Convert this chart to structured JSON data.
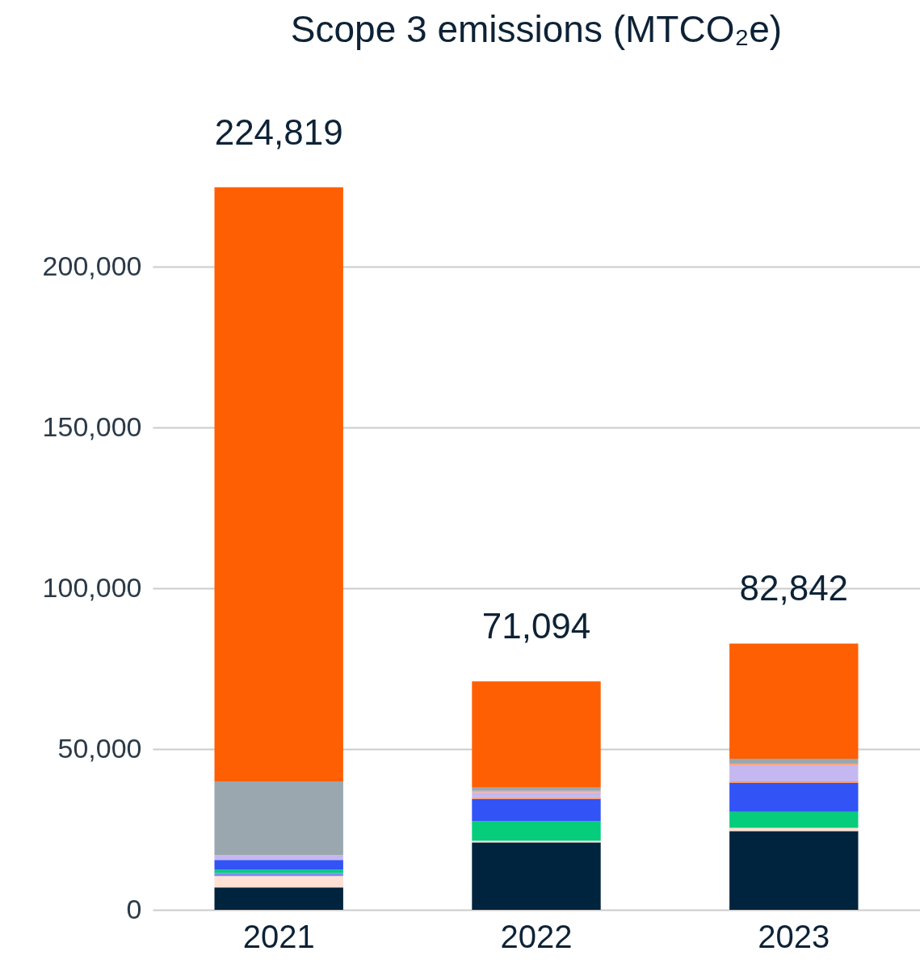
{
  "chart_data": {
    "type": "bar",
    "title": "Scope 3 emissions (MTCO₂e)",
    "stacked": true,
    "categories": [
      "2021",
      "2022",
      "2023"
    ],
    "series": [
      {
        "color": "#00243d",
        "values": [
          7000,
          21000,
          24500
        ]
      },
      {
        "color": "#ffe0d3",
        "values": [
          3500,
          500,
          1000
        ]
      },
      {
        "color": "#7b8ff0",
        "values": [
          1000,
          null,
          null
        ]
      },
      {
        "color": "#05cd7b",
        "values": [
          1000,
          6000,
          5000
        ]
      },
      {
        "color": "#3253f5",
        "values": [
          3000,
          7000,
          9000
        ]
      },
      {
        "color": "#ff9a6a",
        "values": [
          null,
          500,
          500
        ]
      },
      {
        "color": "#c5b8f0",
        "values": [
          1500,
          1500,
          5000
        ]
      },
      {
        "color": "#ffa585",
        "values": [
          null,
          500,
          500
        ]
      },
      {
        "color": "#9aa7ae",
        "values": [
          23000,
          1000,
          1500
        ]
      },
      {
        "color": "#ff5f03",
        "values": [
          184819,
          33094,
          35842
        ]
      }
    ],
    "totals": [
      "224,819",
      "71,094",
      "82,842"
    ],
    "ylim": [
      0,
      225000
    ],
    "yticks": [
      0,
      {
        "value": 50000,
        "label": "50,000"
      },
      {
        "value": 100000,
        "label": "100,000"
      },
      {
        "value": 150000,
        "label": "150,000"
      },
      {
        "value": 200000,
        "label": "200,000"
      }
    ],
    "grid": "y"
  }
}
